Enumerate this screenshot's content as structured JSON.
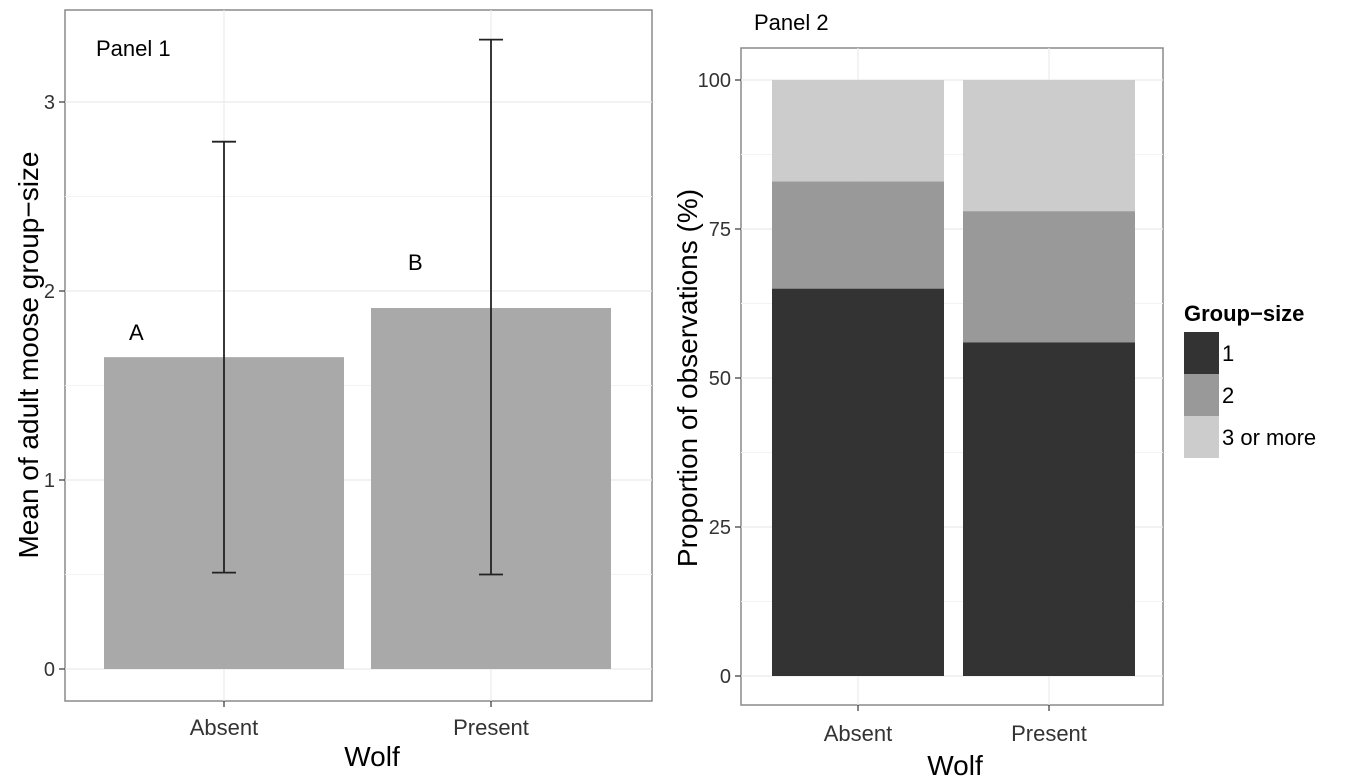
{
  "chart_data": [
    {
      "type": "bar",
      "panel_label": "Panel 1",
      "categories": [
        "Absent",
        "Present"
      ],
      "values": [
        1.65,
        1.91
      ],
      "error_low": [
        0.51,
        0.5
      ],
      "error_high": [
        2.79,
        3.33
      ],
      "bar_letters": [
        "A",
        "B"
      ],
      "xlabel": "Wolf",
      "ylabel": "Mean of adult moose group−size",
      "ylim": [
        0,
        3.35
      ],
      "yticks": [
        0,
        1,
        2,
        3
      ],
      "grid": true,
      "bar_color": "#a9a9a9"
    },
    {
      "type": "bar",
      "stacked": true,
      "panel_label": "Panel 2",
      "categories": [
        "Absent",
        "Present"
      ],
      "series": [
        {
          "name": "1",
          "values": [
            65,
            56
          ],
          "color": "#333333"
        },
        {
          "name": "2",
          "values": [
            18,
            22
          ],
          "color": "#999999"
        },
        {
          "name": "3 or more",
          "values": [
            17,
            22
          ],
          "color": "#cccccc"
        }
      ],
      "xlabel": "Wolf",
      "ylabel": "Proportion of observations (%)",
      "ylim": [
        0,
        100
      ],
      "yticks": [
        "0",
        "25",
        "50",
        "75",
        "100"
      ],
      "grid": true,
      "legend_title": "Group−size",
      "legend_position": "right"
    }
  ]
}
